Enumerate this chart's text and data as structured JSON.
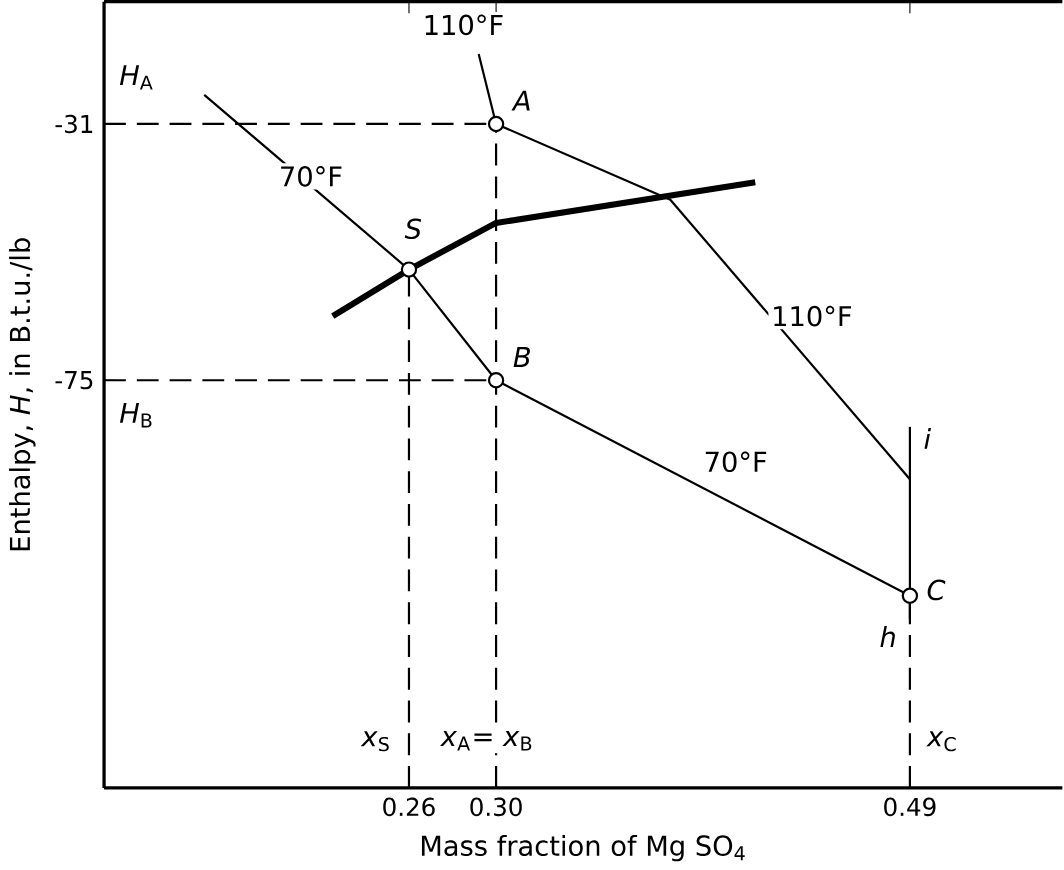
{
  "chart_data": {
    "type": "line",
    "xlabel": "Mass fraction of Mg SO$_{4}$",
    "ylabel": "Enthalpy, *H*, in B.t.u./lb",
    "xlim": [
      0.12,
      0.56
    ],
    "ylim": [
      -145,
      -10
    ],
    "xticks": [
      0.26,
      {
        "value": 0.3,
        "label": "0.30"
      },
      0.49
    ],
    "yticks": [
      -31,
      -75
    ],
    "grid": false,
    "ref_lines": [
      {
        "axis": "y",
        "value": -31,
        "line_style": "dashed"
      },
      {
        "axis": "y",
        "value": -75,
        "line_style": "dashed"
      },
      {
        "axis": "x",
        "value": 0.26,
        "line_style": "dashed"
      },
      {
        "axis": "x",
        "value": 0.3,
        "line_style": "dashed"
      },
      {
        "axis": "x",
        "value": 0.49,
        "line_style": "dashed"
      }
    ],
    "series": [
      {
        "color": "#000000",
        "x": [
          0.166,
          0.26,
          0.3,
          0.49
        ],
        "values": [
          -26,
          -56,
          -75,
          -112
        ]
      },
      {
        "color": "#000000",
        "x": [
          0.292,
          0.3,
          0.38,
          0.49
        ],
        "values": [
          -19,
          -31,
          -44,
          -92
        ]
      },
      {
        "color": "#000000",
        "x": [
          0.225,
          0.26,
          0.3,
          0.419
        ],
        "values": [
          -64,
          -56,
          -48,
          -41
        ]
      },
      {
        "color": "#000000",
        "x": [
          0.49,
          0.49
        ],
        "values": [
          -83,
          -116
        ]
      },
      {
        "type": "scatter",
        "color": "#000000",
        "x": [
          0.26,
          0.3,
          0.3,
          0.49
        ],
        "values": [
          -56,
          -31,
          -75,
          -112
        ]
      }
    ],
    "annotations": [
      {
        "text": "110°F",
        "x": 0.285,
        "y": -14
      },
      {
        "text": "*A*",
        "x": 0.312,
        "y": -27
      },
      {
        "text": "70°F",
        "x": 0.215,
        "y": -40
      },
      {
        "text": "*S*",
        "x": 0.262,
        "y": -49
      },
      {
        "text": "*B*",
        "x": 0.312,
        "y": -71
      },
      {
        "text": "70°F",
        "x": 0.41,
        "y": -89
      },
      {
        "text": "110°F",
        "x": 0.445,
        "y": -64
      },
      {
        "text": "*i*",
        "x": 0.498,
        "y": -85
      },
      {
        "text": "*C*",
        "x": 0.502,
        "y": -111
      },
      {
        "text": "*h*",
        "x": 0.48,
        "y": -119
      },
      {
        "text": "*H*$_{A}$",
        "x": 0.135,
        "y": -23
      },
      {
        "text": "*H*$_{B}$",
        "x": 0.135,
        "y": -81
      },
      {
        "text": "*x*$_{S}$",
        "x": 0.245,
        "y": -137
      },
      "*x*$_{A}$= *x*$_{B}$",
      {
        "text": "*x*$_{C}$",
        "x": 0.505,
        "y": -137
      }
    ]
  }
}
